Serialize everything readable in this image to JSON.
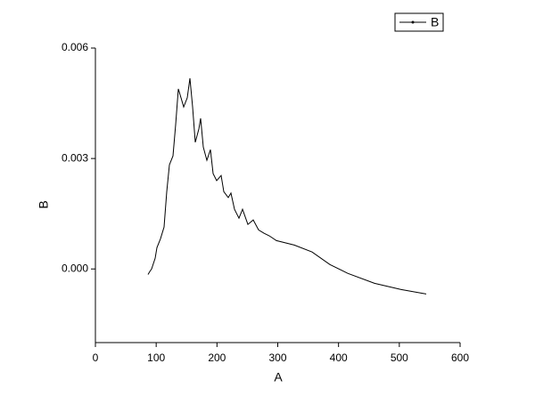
{
  "chart_data": {
    "type": "line",
    "x_label": "A",
    "y_label": "B",
    "series": [
      {
        "name": "B",
        "color": "#000000",
        "x": [
          86.5,
          89.5,
          92.4,
          98.3,
          101.2,
          107.1,
          113,
          117.4,
          121.8,
          127.6,
          132,
          136.4,
          140.8,
          145.2,
          151.1,
          155.5,
          159.9,
          164.3,
          170.2,
          173.1,
          177.5,
          183.4,
          189.2,
          193.6,
          199.5,
          206.8,
          211.2,
          218.6,
          223,
          228.8,
          236.2,
          242,
          250.8,
          259.6,
          268.4,
          277.3,
          286,
          297.8,
          327.1,
          356.5,
          385.8,
          415.1,
          459.1,
          503.1,
          544.2
        ],
        "values": [
          -0.00015,
          -7e-05,
          0,
          0.00029,
          0.00058,
          0.00082,
          0.00114,
          0.0021,
          0.00283,
          0.00307,
          0.00392,
          0.00489,
          0.00465,
          0.0044,
          0.00465,
          0.00518,
          0.0044,
          0.00344,
          0.0038,
          0.00409,
          0.00331,
          0.00295,
          0.00324,
          0.00259,
          0.0024,
          0.00254,
          0.0021,
          0.00194,
          0.00206,
          0.00162,
          0.00138,
          0.00162,
          0.00121,
          0.00133,
          0.00106,
          0.00097,
          0.0009,
          0.00077,
          0.00065,
          0.00046,
          0.00012,
          -0.00012,
          -0.00039,
          -0.00056,
          -0.00068
        ]
      }
    ],
    "xlim": [
      0,
      600
    ],
    "xticks": [
      0,
      100,
      200,
      300,
      400,
      500,
      600
    ],
    "ylim": [
      -0.002,
      0.006
    ],
    "yticks": [
      {
        "value": 0,
        "label": "0.000"
      },
      {
        "value": 0.003,
        "label": "0.003"
      },
      {
        "value": 0.006,
        "label": "0.006"
      }
    ],
    "legend": "top-right"
  }
}
